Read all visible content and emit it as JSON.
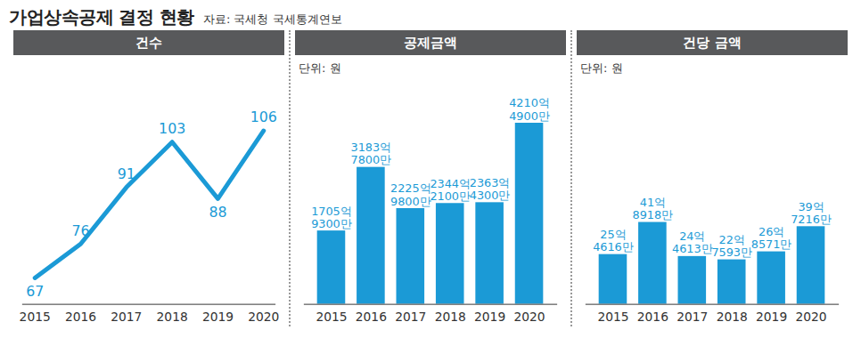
{
  "title": "가업상속공제 결정 현황",
  "source": "자료: 국세청 국세통계연보",
  "chart_data": [
    {
      "type": "line",
      "title": "건수",
      "categories": [
        "2015",
        "2016",
        "2017",
        "2018",
        "2019",
        "2020"
      ],
      "values": [
        67,
        76,
        91,
        103,
        88,
        106
      ],
      "color": "#1b9ad6",
      "ylim": [
        60,
        117
      ],
      "data_labels": true,
      "tick_labels": "x",
      "grid": false
    },
    {
      "type": "bar",
      "title": "공제금액",
      "subtitle": "단위: 원",
      "categories": [
        "2015",
        "2016",
        "2017",
        "2018",
        "2019",
        "2020"
      ],
      "values": [
        170593000000,
        318378000000,
        222598000000,
        234421000000,
        236343000000,
        421049000000
      ],
      "value_labels": [
        "1705억 9300만",
        "3183억 7800만",
        "2225억 9800만",
        "2344억 2100만",
        "2363억 4300만",
        "4210억 4900만"
      ],
      "color": "#1b9ad6",
      "ylim": [
        0,
        500000000000
      ],
      "data_labels": true,
      "tick_labels": "x",
      "grid": false
    },
    {
      "type": "bar",
      "title": "건당 금액",
      "subtitle": "단위: 원",
      "categories": [
        "2015",
        "2016",
        "2017",
        "2018",
        "2019",
        "2020"
      ],
      "values": [
        2546160000,
        4189180000,
        2446130000,
        2275930000,
        2685710000,
        3972160000
      ],
      "value_labels": [
        "25억 4616만",
        "41억 8918만",
        "24억 4613만",
        "22억 7593만",
        "26억 8571만",
        "39억 7216만"
      ],
      "color": "#1b9ad6",
      "ylim": [
        0,
        11000000000
      ],
      "data_labels": true,
      "tick_labels": "x",
      "grid": false
    }
  ]
}
